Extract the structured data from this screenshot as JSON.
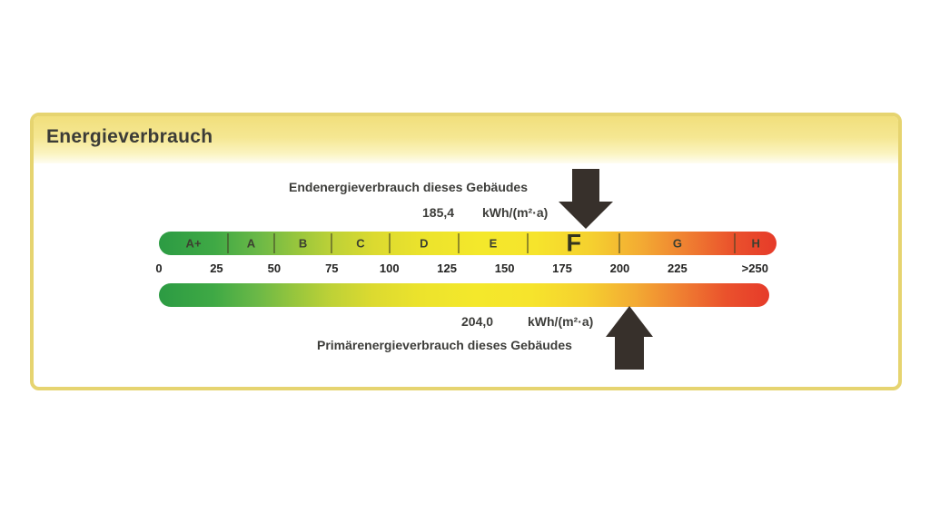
{
  "panel": {
    "title": "Energieverbrauch"
  },
  "chart_data": {
    "type": "bar",
    "subtype": "energy-efficiency-consumption-scale",
    "title": "Energieverbrauch",
    "xlim": [
      0,
      268
    ],
    "axis_unit": "kWh/(m²·a)",
    "classes": [
      {
        "label": "A+",
        "max": 30
      },
      {
        "label": "A",
        "max": 50
      },
      {
        "label": "B",
        "max": 75
      },
      {
        "label": "C",
        "max": 100
      },
      {
        "label": "D",
        "max": 130
      },
      {
        "label": "E",
        "max": 160
      },
      {
        "label": "F",
        "max": 200
      },
      {
        "label": "G",
        "max": 250
      },
      {
        "label": "H",
        "max": 268
      }
    ],
    "current_class": "F",
    "ticks": [
      {
        "label": "0",
        "value": 0
      },
      {
        "label": "25",
        "value": 25
      },
      {
        "label": "50",
        "value": 50
      },
      {
        "label": "75",
        "value": 75
      },
      {
        "label": "100",
        "value": 100
      },
      {
        "label": "125",
        "value": 125
      },
      {
        "label": "150",
        "value": 150
      },
      {
        "label": "175",
        "value": 175
      },
      {
        "label": "200",
        "value": 200
      },
      {
        "label": "225",
        "value": 225
      },
      {
        "label": ">250",
        "value": 250,
        "offset": 22
      }
    ],
    "markers": [
      {
        "name": "Endenergieverbrauch dieses Gebäudes",
        "value": 185.4,
        "value_label": "185,4",
        "unit": "kWh/(m²·a)",
        "arrow": "down"
      },
      {
        "name": "Primärenergieverbrauch dieses Gebäudes",
        "value": 204.0,
        "value_label": "204,0",
        "unit": "kWh/(m²·a)",
        "arrow": "up"
      }
    ],
    "colors": {
      "scale_green": "#2c9b43",
      "scale_yellow": "#f4e82b",
      "scale_red": "#e63b2a",
      "panel_border": "#e6d470",
      "header_yellow": "#f1df7c",
      "arrow": "#37302b",
      "text": "#3d3d3a"
    }
  }
}
